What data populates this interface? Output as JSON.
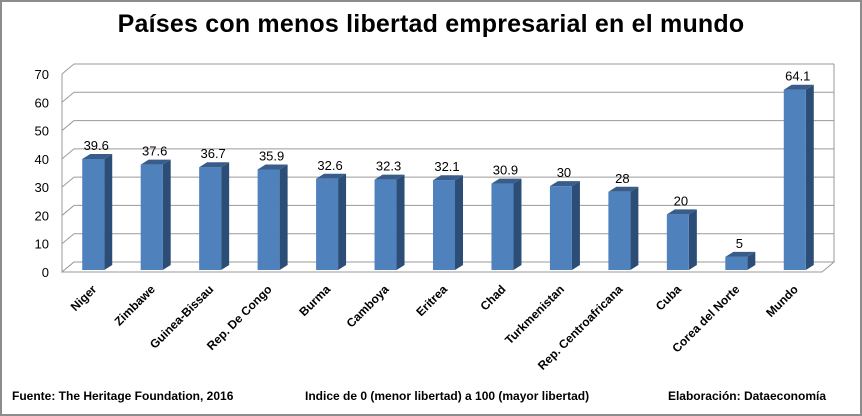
{
  "chart_data": {
    "type": "bar",
    "title": "Países con menos libertad empresarial en el mundo",
    "categories": [
      "Niger",
      "Zimbawe",
      "Guinea-Bissau",
      "Rep. De Congo",
      "Burma",
      "Camboya",
      "Eritrea",
      "Chad",
      "Turkmenistan",
      "Rep. Centroafricana",
      "Cuba",
      "Corea del Norte",
      "Mundo"
    ],
    "values": [
      39.6,
      37.6,
      36.7,
      35.9,
      32.6,
      32.3,
      32.1,
      30.9,
      30,
      28,
      20,
      5,
      64.1
    ],
    "value_labels": [
      "39.6",
      "37.6",
      "36.7",
      "35.9",
      "32.6",
      "32.3",
      "32.1",
      "30.9",
      "30",
      "28",
      "20",
      "5",
      "64.1"
    ],
    "ylim": [
      0,
      70
    ],
    "yticks": [
      0,
      10,
      20,
      30,
      40,
      50,
      60,
      70
    ],
    "grid": true,
    "legend": "none",
    "bar_color": "#4f81bd",
    "bar_side_color": "#2c4d76",
    "bar_top_color": "#385d8a"
  },
  "footer": {
    "source": "Fuente: The Heritage Foundation, 2016",
    "note": "Indice de 0 (menor libertad) a 100  (mayor libertad)",
    "credit": "Elaboración: Dataeconomía"
  }
}
